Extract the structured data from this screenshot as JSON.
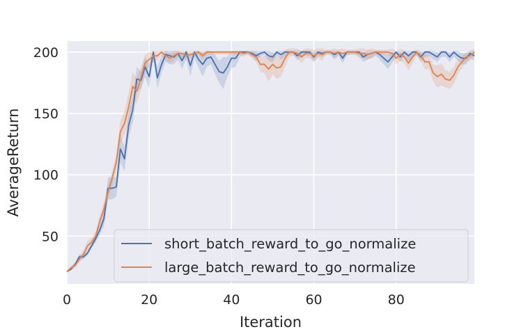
{
  "chart_data": {
    "type": "line",
    "title": "",
    "xlabel": "Iteration",
    "ylabel": "AverageReturn",
    "xlim": [
      0,
      99
    ],
    "ylim": [
      11,
      209
    ],
    "xticks": [
      0,
      20,
      40,
      60,
      80
    ],
    "yticks": [
      50,
      100,
      150,
      200
    ],
    "grid": true,
    "legend_position": "lower-right",
    "x": [
      0,
      1,
      2,
      3,
      4,
      5,
      6,
      7,
      8,
      9,
      10,
      11,
      12,
      13,
      14,
      15,
      16,
      17,
      18,
      19,
      20,
      21,
      22,
      23,
      24,
      25,
      26,
      27,
      28,
      29,
      30,
      31,
      32,
      33,
      34,
      35,
      36,
      37,
      38,
      39,
      40,
      41,
      42,
      43,
      44,
      45,
      46,
      47,
      48,
      49,
      50,
      51,
      52,
      53,
      54,
      55,
      56,
      57,
      58,
      59,
      60,
      61,
      62,
      63,
      64,
      65,
      66,
      67,
      68,
      69,
      70,
      71,
      72,
      73,
      74,
      75,
      76,
      77,
      78,
      79,
      80,
      81,
      82,
      83,
      84,
      85,
      86,
      87,
      88,
      89,
      90,
      91,
      92,
      93,
      94,
      95,
      96,
      97,
      98,
      99
    ],
    "series": [
      {
        "name": "short_batch_reward_to_go_normalize",
        "color": "#4c72b0",
        "values": [
          21,
          23,
          27,
          33,
          33,
          36,
          42,
          48,
          55,
          64,
          89,
          89,
          90,
          121,
          113,
          140,
          153,
          178,
          177,
          188,
          180,
          200,
          179,
          190,
          198,
          197,
          196,
          199,
          193,
          200,
          189,
          200,
          194,
          190,
          195,
          196,
          190,
          184,
          183,
          188,
          195,
          195,
          200,
          200,
          200,
          199,
          197,
          199,
          200,
          197,
          196,
          200,
          198,
          200,
          200,
          200,
          197,
          200,
          200,
          200,
          196,
          200,
          199,
          200,
          200,
          198,
          200,
          195,
          200,
          200,
          200,
          200,
          196,
          198,
          199,
          200,
          198,
          195,
          192,
          196,
          200,
          196,
          200,
          197,
          200,
          200,
          196,
          200,
          200,
          198,
          196,
          200,
          200,
          196,
          200,
          197,
          195,
          195,
          199,
          197
        ],
        "band_low": [
          21,
          22,
          26,
          31,
          31,
          34,
          40,
          45,
          51,
          58,
          80,
          80,
          82,
          110,
          103,
          130,
          143,
          168,
          170,
          180,
          170,
          195,
          170,
          183,
          192,
          190,
          190,
          194,
          186,
          195,
          180,
          195,
          187,
          180,
          188,
          190,
          182,
          175,
          170,
          180,
          187,
          188,
          196,
          198,
          198,
          196,
          193,
          196,
          198,
          193,
          192,
          197,
          194,
          197,
          198,
          198,
          193,
          197,
          197,
          197,
          192,
          197,
          196,
          198,
          198,
          194,
          197,
          191,
          197,
          198,
          198,
          197,
          192,
          194,
          195,
          197,
          194,
          190,
          186,
          191,
          197,
          192,
          197,
          193,
          196,
          197,
          192,
          196,
          197,
          194,
          192,
          196,
          196,
          192,
          196,
          193,
          190,
          190,
          195,
          193
        ],
        "band_high": [
          21,
          24,
          28,
          35,
          35,
          38,
          44,
          51,
          59,
          70,
          98,
          98,
          98,
          132,
          123,
          150,
          163,
          188,
          184,
          196,
          190,
          201,
          188,
          197,
          201,
          201,
          201,
          201,
          199,
          201,
          198,
          201,
          201,
          200,
          201,
          201,
          198,
          193,
          196,
          196,
          201,
          201,
          201,
          201,
          201,
          201,
          201,
          201,
          201,
          201,
          200,
          201,
          201,
          201,
          201,
          201,
          201,
          201,
          201,
          201,
          200,
          201,
          201,
          201,
          201,
          201,
          201,
          199,
          201,
          201,
          201,
          201,
          200,
          201,
          201,
          201,
          201,
          199,
          198,
          200,
          201,
          200,
          201,
          201,
          201,
          201,
          200,
          201,
          201,
          201,
          200,
          201,
          201,
          200,
          201,
          201,
          199,
          199,
          201,
          201
        ]
      },
      {
        "name": "large_batch_reward_to_go_normalize",
        "color": "#dd8452",
        "values": [
          21,
          24,
          26,
          31,
          35,
          42,
          45,
          50,
          62,
          72,
          86,
          97,
          110,
          135,
          142,
          155,
          172,
          168,
          179,
          191,
          194,
          197,
          197,
          200,
          197,
          195,
          197,
          199,
          199,
          197,
          198,
          199,
          200,
          197,
          200,
          200,
          200,
          200,
          200,
          200,
          200,
          200,
          200,
          199,
          200,
          198,
          196,
          190,
          190,
          186,
          190,
          187,
          188,
          195,
          200,
          200,
          199,
          196,
          199,
          199,
          197,
          199,
          198,
          200,
          200,
          199,
          200,
          199,
          200,
          200,
          200,
          199,
          199,
          198,
          199,
          200,
          200,
          200,
          200,
          199,
          195,
          198,
          196,
          191,
          196,
          200,
          197,
          192,
          192,
          183,
          180,
          182,
          178,
          177,
          181,
          188,
          192,
          196,
          197,
          200
        ],
        "band_low": [
          20,
          22,
          24,
          28,
          32,
          38,
          41,
          46,
          57,
          66,
          80,
          91,
          103,
          126,
          132,
          143,
          160,
          158,
          170,
          184,
          188,
          192,
          193,
          198,
          193,
          191,
          193,
          196,
          196,
          193,
          195,
          196,
          198,
          194,
          198,
          198,
          198,
          198,
          198,
          198,
          198,
          198,
          198,
          196,
          198,
          195,
          192,
          184,
          183,
          176,
          182,
          178,
          180,
          188,
          196,
          197,
          195,
          191,
          195,
          195,
          192,
          195,
          193,
          198,
          198,
          195,
          198,
          195,
          198,
          198,
          198,
          195,
          195,
          194,
          195,
          198,
          198,
          198,
          198,
          195,
          190,
          193,
          191,
          185,
          191,
          198,
          193,
          186,
          186,
          176,
          171,
          173,
          171,
          170,
          174,
          182,
          187,
          192,
          193,
          197
        ],
        "band_high": [
          22,
          26,
          28,
          34,
          38,
          46,
          49,
          54,
          67,
          78,
          92,
          103,
          117,
          144,
          152,
          167,
          184,
          178,
          188,
          198,
          200,
          201,
          201,
          201,
          201,
          199,
          201,
          201,
          201,
          201,
          201,
          201,
          201,
          200,
          201,
          201,
          201,
          201,
          201,
          201,
          201,
          201,
          201,
          201,
          201,
          201,
          200,
          196,
          197,
          196,
          198,
          196,
          196,
          202,
          203,
          203,
          203,
          201,
          203,
          203,
          202,
          203,
          203,
          202,
          202,
          203,
          202,
          203,
          202,
          202,
          202,
          203,
          203,
          202,
          203,
          202,
          202,
          202,
          202,
          203,
          200,
          203,
          201,
          197,
          201,
          202,
          201,
          198,
          198,
          190,
          189,
          191,
          185,
          184,
          188,
          194,
          197,
          200,
          201,
          203
        ]
      }
    ]
  }
}
